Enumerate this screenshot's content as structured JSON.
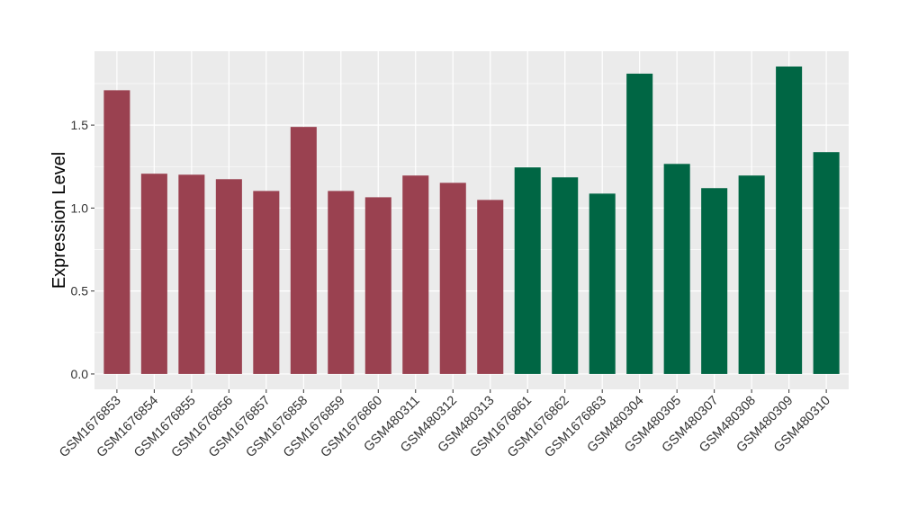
{
  "chart_data": {
    "type": "bar",
    "title": "",
    "xlabel": "",
    "ylabel": "Expression Level",
    "ylim": [
      -0.0925,
      1.945
    ],
    "yticks": [
      0.0,
      0.5,
      1.0,
      1.5
    ],
    "ytick_labels": [
      "0.0",
      "0.5",
      "1.0",
      "1.5"
    ],
    "grid": true,
    "legend": "none",
    "categories": [
      "GSM1676853",
      "GSM1676854",
      "GSM1676855",
      "GSM1676856",
      "GSM1676857",
      "GSM1676858",
      "GSM1676859",
      "GSM1676860",
      "GSM480311",
      "GSM480312",
      "GSM480313",
      "GSM1676861",
      "GSM1676862",
      "GSM1676863",
      "GSM480304",
      "GSM480305",
      "GSM480307",
      "GSM480308",
      "GSM480309",
      "GSM480310"
    ],
    "values": [
      1.71,
      1.207,
      1.201,
      1.174,
      1.103,
      1.489,
      1.103,
      1.065,
      1.196,
      1.152,
      1.049,
      1.245,
      1.185,
      1.087,
      1.81,
      1.266,
      1.12,
      1.196,
      1.853,
      1.337
    ],
    "groups": [
      "a",
      "a",
      "a",
      "a",
      "a",
      "a",
      "a",
      "a",
      "a",
      "a",
      "a",
      "b",
      "b",
      "b",
      "b",
      "b",
      "b",
      "b",
      "b",
      "b"
    ],
    "colors": {
      "a": "#9A4150",
      "b": "#006644"
    },
    "panel_background": "#EBEBEB",
    "grid_color": "#FFFFFF"
  }
}
